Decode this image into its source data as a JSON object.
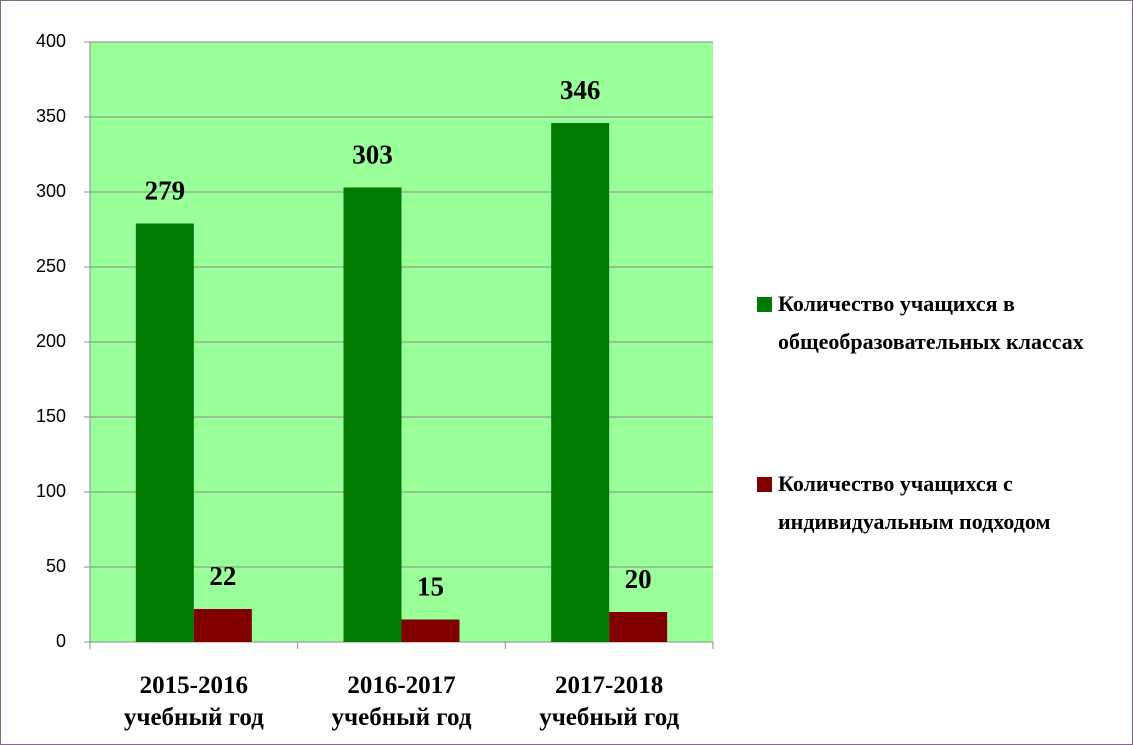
{
  "chart_data": {
    "type": "bar",
    "categories": [
      "2015-2016 учебный год",
      "2016-2017 учебный год",
      "2017-2018 учебный год"
    ],
    "series": [
      {
        "name": "Количество учащихся в общеобразовательных классах",
        "color": "#007a00",
        "values": [
          279,
          303,
          346
        ]
      },
      {
        "name": "Количество учащихся с индивидуальным подходом",
        "color": "#800000",
        "values": [
          22,
          15,
          20
        ]
      }
    ],
    "ylim": [
      0,
      400
    ],
    "yticks": [
      0,
      50,
      100,
      150,
      200,
      250,
      300,
      350,
      400
    ],
    "grid": true,
    "plot_background": "#99ff99",
    "legend": "right"
  }
}
